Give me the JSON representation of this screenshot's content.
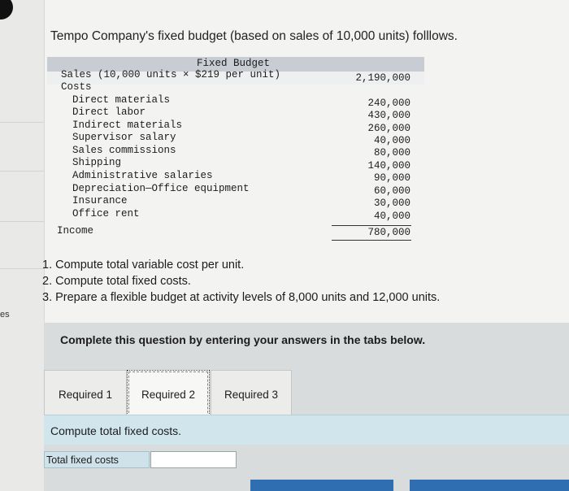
{
  "title": "Tempo Company's fixed budget (based on sales of 10,000 units) folllows.",
  "budget": {
    "header": "Fixed Budget",
    "sales_label": "Sales (10,000 units × $219 per unit)",
    "sales_value": "2,190,000",
    "costs_label": "Costs",
    "costs": [
      {
        "label": "Direct materials",
        "value": "240,000"
      },
      {
        "label": "Direct labor",
        "value": "430,000"
      },
      {
        "label": "Indirect materials",
        "value": "260,000"
      },
      {
        "label": "Supervisor salary",
        "value": "40,000"
      },
      {
        "label": "Sales commissions",
        "value": "80,000"
      },
      {
        "label": "Shipping",
        "value": "140,000"
      },
      {
        "label": "Administrative salaries",
        "value": "90,000"
      },
      {
        "label": "Depreciation—Office equipment",
        "value": "60,000"
      },
      {
        "label": "Insurance",
        "value": "30,000"
      },
      {
        "label": "Office rent",
        "value": "40,000"
      }
    ],
    "income_label": "Income",
    "income_value": "780,000"
  },
  "questions": [
    "1. Compute total variable cost per unit.",
    "2. Compute total fixed costs.",
    "3. Prepare a flexible budget at activity levels of 8,000 units and 12,000 units."
  ],
  "left_fragment": "es",
  "panel": {
    "heading": "Complete this question by entering your answers in the tabs below.",
    "tabs": [
      {
        "label": "Required 1"
      },
      {
        "label": "Required 2"
      },
      {
        "label": "Required 3"
      }
    ],
    "active_tab": "Required 2",
    "content": "Compute total fixed costs.",
    "answer_label": "Total fixed costs",
    "answer_value": ""
  },
  "colors": {
    "panel_bg": "#d8dcdd",
    "content_strip": "#d0e6ec",
    "nav_button": "#2f6eb0",
    "table_header": "#c8cdd3"
  }
}
